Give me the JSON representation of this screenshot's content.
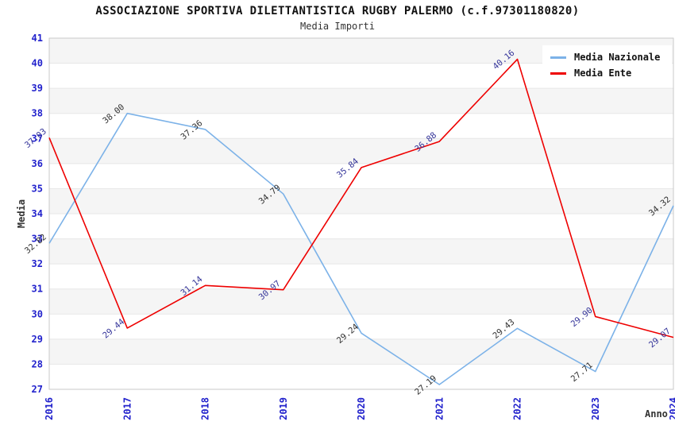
{
  "header": {
    "title": "ASSOCIAZIONE SPORTIVA DILETTANTISTICA RUGBY PALERMO (c.f.97301180820)",
    "subtitle": "Media Importi"
  },
  "legend": {
    "position": "top-right",
    "items": [
      {
        "label": "Media Nazionale",
        "color": "#7cb2e8"
      },
      {
        "label": "Media Ente",
        "color": "#ee0000"
      }
    ]
  },
  "chart_data": {
    "type": "line",
    "title": "ASSOCIAZIONE SPORTIVA DILETTANTISTICA RUGBY PALERMO (c.f.97301180820)",
    "subtitle": "Media Importi",
    "categories": [
      "2016",
      "2017",
      "2018",
      "2019",
      "2020",
      "2021",
      "2022",
      "2023",
      "2024"
    ],
    "series": [
      {
        "name": "Media Nazionale",
        "color": "#7cb2e8",
        "label_color": "#2f2f2f",
        "values": [
          32.82,
          38.0,
          37.36,
          34.79,
          29.24,
          27.19,
          29.43,
          27.71,
          34.32
        ]
      },
      {
        "name": "Media Ente",
        "color": "#ee0000",
        "label_color": "#333399",
        "values": [
          37.03,
          29.44,
          31.14,
          30.97,
          35.84,
          36.88,
          40.16,
          29.9,
          29.07
        ]
      }
    ],
    "xlabel": "Anno",
    "ylabel": "Media",
    "ylim": [
      27,
      41
    ],
    "ytick_step": 1,
    "grid": true,
    "legend_position": "top-right",
    "axis_tick_label_color": "#2222cc",
    "grid_line_color": "#e7e7e7",
    "plot_border_color": "#c9c9c9",
    "band_fill": "#f5f5f5",
    "data_label_decimals": 2
  }
}
